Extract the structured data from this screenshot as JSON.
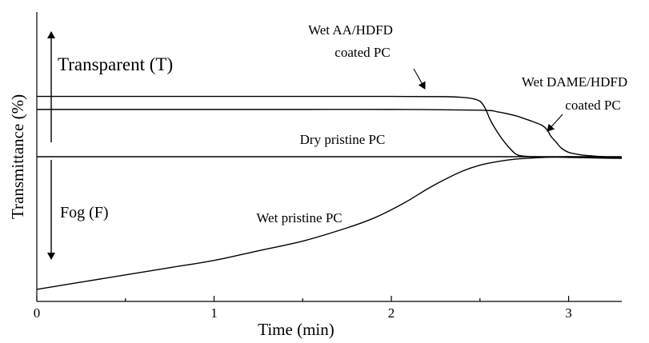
{
  "chart_data": {
    "type": "line",
    "xlabel": "Time (min)",
    "ylabel": "Transmittance (%)",
    "xlim": [
      0,
      3.3
    ],
    "ylim": [
      -6,
      6
    ],
    "x_ticks": [
      "0",
      "1",
      "2",
      "3"
    ],
    "y_ticks_labeled": false,
    "grid": false,
    "legend": "none",
    "series": [
      {
        "x": [
          0,
          0.5,
          1.0,
          1.5,
          2.0,
          2.3,
          2.4,
          2.45,
          2.5,
          2.53,
          2.56,
          2.6,
          2.65,
          2.7,
          2.73,
          2.76,
          2.8,
          3.0,
          3.2,
          3.3
        ],
        "values": [
          2.5,
          2.5,
          2.5,
          2.5,
          2.5,
          2.49,
          2.46,
          2.42,
          2.3,
          2.0,
          1.5,
          1.0,
          0.5,
          0.12,
          0.04,
          0.02,
          0.0,
          -0.03,
          -0.06,
          -0.07
        ]
      },
      {
        "x": [
          0,
          0.5,
          1.0,
          1.5,
          2.0,
          2.5,
          2.6,
          2.7,
          2.75,
          2.8,
          2.85,
          2.88,
          2.9,
          2.93,
          2.96,
          3.0,
          3.05,
          3.1,
          3.2,
          3.3
        ],
        "values": [
          1.96,
          1.96,
          1.96,
          1.96,
          1.96,
          1.93,
          1.86,
          1.7,
          1.58,
          1.45,
          1.3,
          1.1,
          0.85,
          0.6,
          0.35,
          0.18,
          0.1,
          0.05,
          0.0,
          -0.05
        ]
      },
      {
        "x": [
          0,
          1.0,
          2.0,
          3.0,
          3.3
        ],
        "values": [
          0,
          0,
          0,
          0,
          0
        ]
      },
      {
        "x": [
          0,
          0.25,
          0.5,
          0.75,
          1.0,
          1.25,
          1.5,
          1.75,
          1.9,
          2.0,
          2.1,
          2.2,
          2.3,
          2.4,
          2.5,
          2.6,
          2.7,
          2.8,
          2.9,
          3.0,
          3.1,
          3.2,
          3.3
        ],
        "values": [
          -5.5,
          -5.2,
          -4.9,
          -4.6,
          -4.3,
          -3.9,
          -3.5,
          -2.95,
          -2.55,
          -2.2,
          -1.8,
          -1.35,
          -0.95,
          -0.6,
          -0.35,
          -0.2,
          -0.1,
          -0.05,
          -0.02,
          0.0,
          -0.02,
          -0.04,
          -0.06
        ]
      }
    ],
    "annotations": {
      "transparent": "Transparent (T)",
      "fog": "Fog (F)",
      "aa_line1": "Wet AA/HDFD",
      "aa_line2": "coated PC",
      "dame_line1": "Wet DAME/HDFD",
      "dame_line2": "coated PC",
      "dry": "Dry pristine PC",
      "wet": "Wet pristine PC"
    }
  }
}
